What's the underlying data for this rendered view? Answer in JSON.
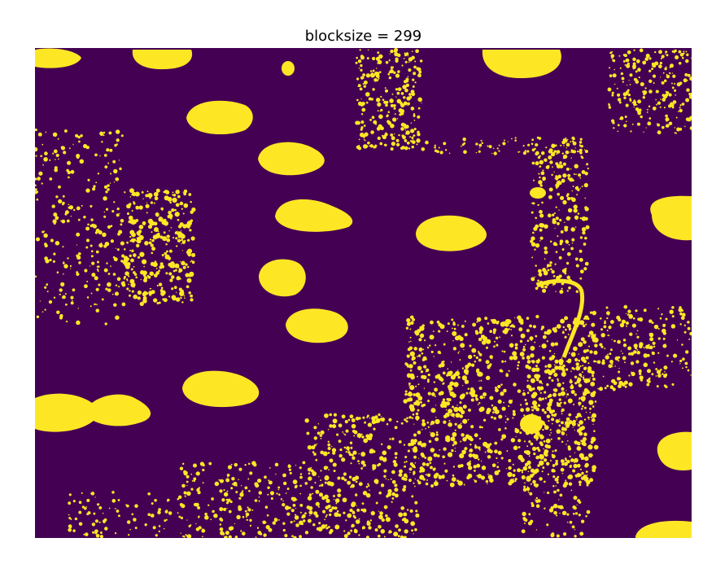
{
  "figure": {
    "title": "blocksize = 299"
  },
  "colors": {
    "background_class": "#440154",
    "foreground_class": "#fde725",
    "page": "#ffffff"
  },
  "image": {
    "description_kind": "binary thresholded image (viridis colormap)",
    "classes": [
      "background",
      "foreground"
    ]
  }
}
